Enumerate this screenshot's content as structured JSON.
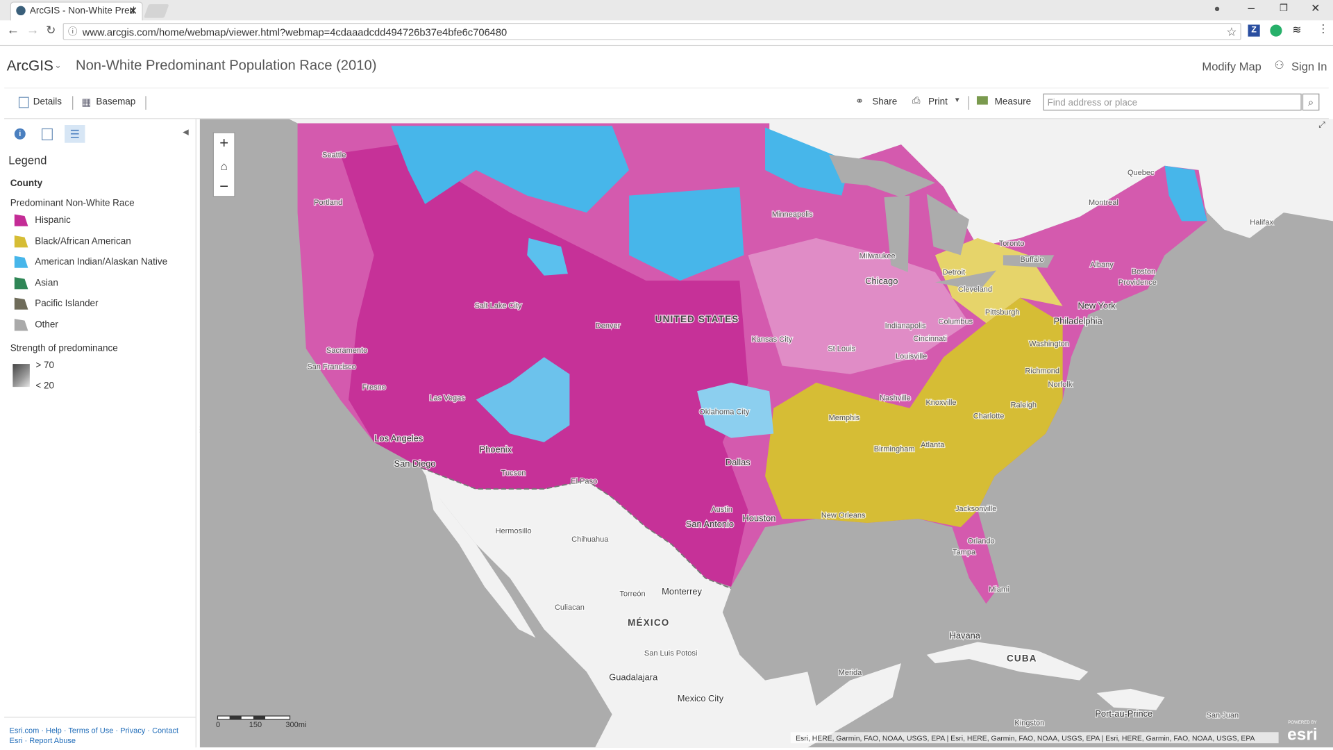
{
  "browser": {
    "tab_title": "ArcGIS - Non-White Pred",
    "url": "www.arcgis.com/home/webmap/viewer.html?webmap=4cdaaadcdd494726b37e4bfe6c706480"
  },
  "header": {
    "app": "ArcGIS",
    "title": "Non-White Predominant Population Race (2010)",
    "modify": "Modify Map",
    "sign_in": "Sign In"
  },
  "toolbar": {
    "details": "Details",
    "basemap": "Basemap",
    "share": "Share",
    "print": "Print",
    "measure": "Measure",
    "search_placeholder": "Find address or place"
  },
  "legend": {
    "title": "Legend",
    "layer": "County",
    "field": "Predominant Non-White Race",
    "items": [
      {
        "label": "Hispanic",
        "color": "#c42c96"
      },
      {
        "label": "Black/African American",
        "color": "#d6bd35"
      },
      {
        "label": "American Indian/Alaskan Native",
        "color": "#47b6ea"
      },
      {
        "label": "Asian",
        "color": "#2f8656"
      },
      {
        "label": "Pacific Islander",
        "color": "#6f6c5a"
      },
      {
        "label": "Other",
        "color": "#a9a9a9"
      }
    ],
    "strength_title": "Strength of predominance",
    "strength": [
      "> 70",
      "< 20"
    ]
  },
  "footer_links": [
    "Esri.com",
    "Help",
    "Terms of Use",
    "Privacy",
    "Contact",
    "Esri",
    "Report Abuse"
  ],
  "map": {
    "labels": [
      "Seattle",
      "Portland",
      "Minneapolis",
      "Quebec",
      "Montreal",
      "Halifax",
      "Toronto",
      "Milwaukee",
      "Chicago",
      "Detroit",
      "Albany",
      "Boston",
      "Providence",
      "Cleveland",
      "Buffalo",
      "Pittsburgh",
      "New York",
      "Philadelphia",
      "Salt Lake City",
      "Denver",
      "UNITED STATES",
      "Columbus",
      "Indianapolis",
      "Cincinnati",
      "Washington",
      "Kansas City",
      "St Louis",
      "Sacramento",
      "San Francisco",
      "Louisville",
      "Richmond",
      "Norfolk",
      "Fresno",
      "Las Vegas",
      "Nashville",
      "Knoxville",
      "Raleigh",
      "Oklahoma City",
      "Memphis",
      "Charlotte",
      "Los Angeles",
      "Phoenix",
      "Birmingham",
      "Atlanta",
      "San Diego",
      "Dallas",
      "Tucson",
      "El Paso",
      "Austin",
      "Houston",
      "New Orleans",
      "Jacksonville",
      "San Antonio",
      "Hermosillo",
      "Chihuahua",
      "Orlando",
      "Tampa",
      "Torreón",
      "Monterrey",
      "Miami",
      "Culiacan",
      "MÉXICO",
      "Havana",
      "CUBA",
      "San Luis Potosi",
      "Merida",
      "Guadalajara",
      "Mexico City",
      "Port-au-Prince",
      "Kingston",
      "San Juan"
    ],
    "scale": [
      "0",
      "150",
      "300mi"
    ],
    "attribution": "Esri, HERE, Garmin, FAO, NOAA, USGS, EPA | Esri, HERE, Garmin, FAO, NOAA, USGS, EPA | Esri, HERE, Garmin, FAO, NOAA, USGS, EPA",
    "logo_caption": "POWERED BY",
    "logo": "esri"
  }
}
